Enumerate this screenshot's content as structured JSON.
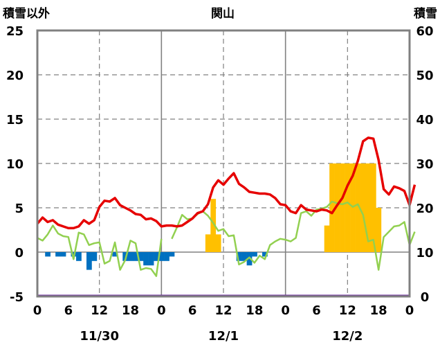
{
  "chart_data": {
    "type": "bar+line",
    "title": "関山",
    "left_axis_label": "積雪以外",
    "right_axis_label": "積雪",
    "left_ylim": [
      -5,
      25
    ],
    "right_ylim": [
      0,
      60
    ],
    "left_ticks": [
      "25",
      "20",
      "15",
      "10",
      "5",
      "0",
      "-5"
    ],
    "right_ticks": [
      "60",
      "50",
      "40",
      "30",
      "20",
      "10",
      "0"
    ],
    "x_ticks": [
      "0",
      "6",
      "12",
      "18",
      "0",
      "6",
      "12",
      "18",
      "0",
      "6",
      "12",
      "18",
      "0"
    ],
    "date_labels": [
      "11/30",
      "12/1",
      "12/2"
    ],
    "grid": true,
    "colors": {
      "red_series": "#e60000",
      "green_series": "#92d050",
      "blue_bars": "#0070c0",
      "orange_bars": "#ffc000",
      "purple_line": "#7030a0",
      "frame": "#808080"
    },
    "series": [
      {
        "color_key": "red_series",
        "axis": "left",
        "values": [
          3.2,
          3.9,
          3.4,
          3.6,
          3.1,
          2.9,
          2.7,
          2.7,
          2.9,
          3.6,
          3.2,
          3.6,
          5.1,
          5.8,
          5.7,
          6.1,
          5.3,
          5.0,
          4.7,
          4.3,
          4.2,
          3.7,
          3.8,
          3.5,
          2.9,
          3.0,
          3.0,
          2.9,
          3.0,
          3.4,
          3.8,
          4.4,
          4.6,
          5.4,
          7.3,
          8.1,
          7.6,
          8.3,
          8.9,
          7.7,
          7.3,
          6.8,
          6.7,
          6.6,
          6.6,
          6.5,
          6.1,
          5.4,
          5.3,
          4.6,
          4.4,
          5.3,
          4.8,
          4.7,
          4.6,
          4.8,
          4.7,
          4.4,
          5.3,
          6.1,
          7.5,
          8.6,
          10.3,
          12.5,
          12.9,
          12.8,
          10.4,
          7.1,
          6.5,
          7.4,
          7.2,
          6.9,
          5.3,
          7.6
        ]
      },
      {
        "color_key": "green_series",
        "axis": "left",
        "values": [
          1.6,
          1.3,
          2.0,
          3.0,
          2.1,
          1.8,
          1.7,
          -0.8,
          2.2,
          2.0,
          0.8,
          1.0,
          1.1,
          -1.3,
          -1.0,
          1.1,
          -2.0,
          -0.9,
          1.3,
          1.0,
          -2.0,
          -1.8,
          -1.9,
          -2.7,
          1.5,
          null,
          1.5,
          2.8,
          4.2,
          3.7,
          3.8,
          4.3,
          4.6,
          4.1,
          3.3,
          2.4,
          2.6,
          1.8,
          1.9,
          -1.4,
          -1.1,
          -0.6,
          -1.2,
          -0.4,
          -0.8,
          0.8,
          1.2,
          1.5,
          1.4,
          1.2,
          1.6,
          4.4,
          4.6,
          4.1,
          4.8,
          4.9,
          5.1,
          5.7,
          5.5,
          5.4,
          5.6,
          5.1,
          5.4,
          4.2,
          1.2,
          1.4,
          -2.0,
          1.7,
          2.3,
          2.9,
          3.0,
          3.4,
          0.8,
          2.3
        ]
      },
      {
        "color_key": "blue_bars",
        "axis": "left",
        "values": [
          0,
          0,
          -0.5,
          0,
          -0.5,
          -0.5,
          0,
          -0.5,
          -1.0,
          0,
          -2.0,
          -1.0,
          0,
          0,
          0,
          -0.5,
          0,
          -1.0,
          -1.0,
          -1.0,
          -1.0,
          -1.5,
          -1.5,
          -1.0,
          -1.0,
          -1.0,
          -0.5,
          0,
          0,
          0,
          0,
          0,
          0,
          0,
          0,
          0,
          0,
          0,
          0,
          -1.0,
          -1.0,
          -1.5,
          -0.5,
          0,
          -0.5,
          0,
          0,
          0,
          0,
          0,
          0,
          0,
          0,
          0,
          0,
          0,
          0,
          0,
          0,
          0,
          0,
          0,
          0,
          0,
          0,
          0,
          0,
          0,
          0,
          0,
          0,
          0,
          0,
          0
        ]
      },
      {
        "color_key": "orange_bars",
        "axis": "left",
        "values": [
          0,
          0,
          0,
          0,
          0,
          0,
          0,
          0,
          0,
          0,
          0,
          0,
          0,
          0,
          0,
          0,
          0,
          0,
          0,
          0,
          0,
          0,
          0,
          0,
          0,
          0,
          0,
          0,
          0,
          0,
          0,
          0,
          0,
          2.0,
          6.0,
          2.0,
          0,
          0,
          0,
          0,
          0,
          0,
          0,
          0,
          0,
          0,
          0,
          0,
          0,
          0,
          0,
          0,
          0,
          0,
          0,
          0,
          3.0,
          10.0,
          10.0,
          10.0,
          10.0,
          10.0,
          10.0,
          10.0,
          10.0,
          10.0,
          5.0,
          0,
          0,
          0,
          0,
          0,
          0,
          0
        ]
      },
      {
        "color_key": "purple_line",
        "axis": "right",
        "values": [
          0,
          0
        ]
      }
    ],
    "x_range_hours": [
      0,
      72
    ]
  }
}
